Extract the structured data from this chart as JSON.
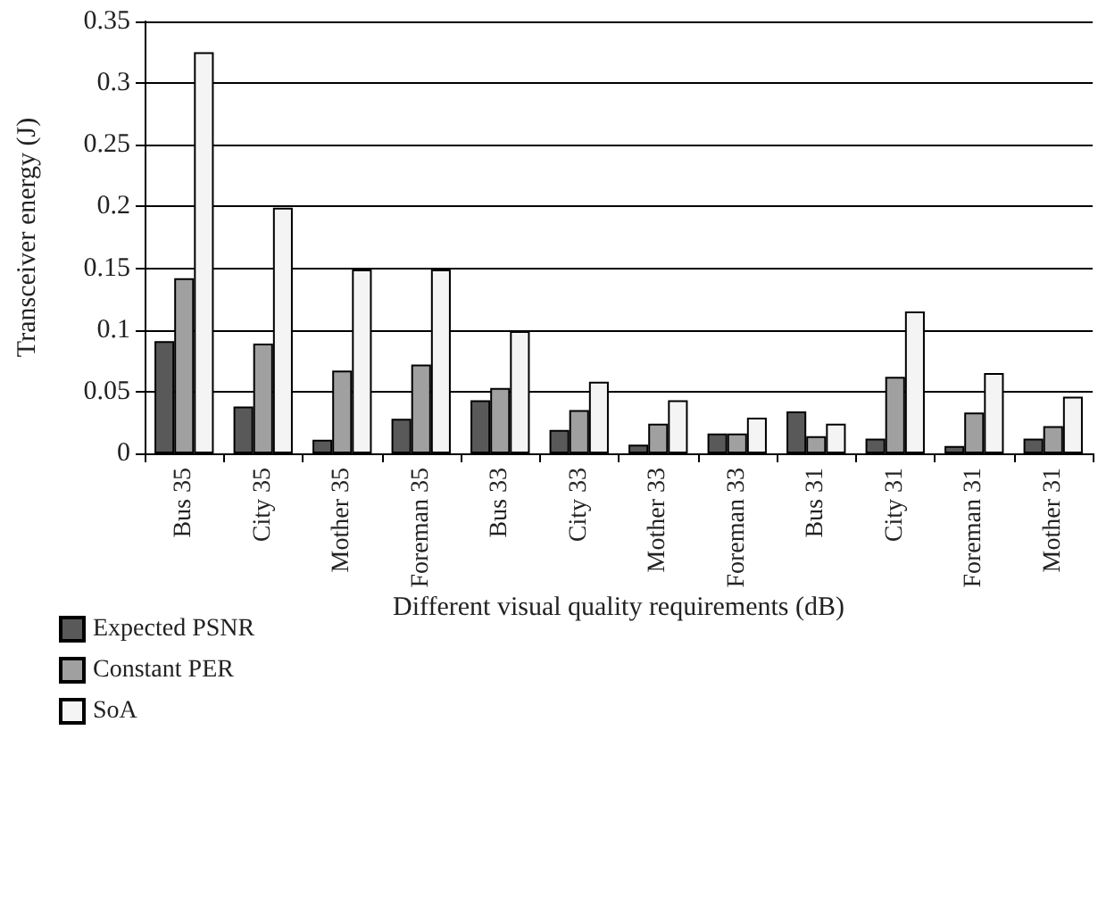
{
  "chart_data": {
    "type": "bar",
    "xlabel": "Different visual quality requirements (dB)",
    "ylabel": "Transceiver energy (J)",
    "categories": [
      "Bus 35",
      "City 35",
      "Mother 35",
      "Foreman 35",
      "Bus 33",
      "City 33",
      "Mother 33",
      "Foreman 33",
      "Bus 31",
      "City 31",
      "Foreman 31",
      "Mother 31"
    ],
    "series": [
      {
        "name": "Expected PSNR",
        "color": "#595959",
        "values": [
          0.091,
          0.038,
          0.011,
          0.028,
          0.043,
          0.019,
          0.007,
          0.016,
          0.034,
          0.012,
          0.006,
          0.012
        ]
      },
      {
        "name": "Constant PER",
        "color": "#a0a0a0",
        "values": [
          0.142,
          0.089,
          0.067,
          0.072,
          0.053,
          0.035,
          0.024,
          0.016,
          0.014,
          0.062,
          0.033,
          0.022
        ]
      },
      {
        "name": "SoA",
        "color": "#f4f4f4",
        "values": [
          0.325,
          0.199,
          0.149,
          0.149,
          0.099,
          0.058,
          0.043,
          0.029,
          0.024,
          0.115,
          0.065,
          0.046
        ]
      }
    ],
    "ylim": [
      0,
      0.35
    ],
    "yticks": [
      0,
      0.05,
      0.1,
      0.15,
      0.2,
      0.25,
      0.3,
      0.35
    ],
    "grid": "y",
    "legend": "bottom left"
  }
}
